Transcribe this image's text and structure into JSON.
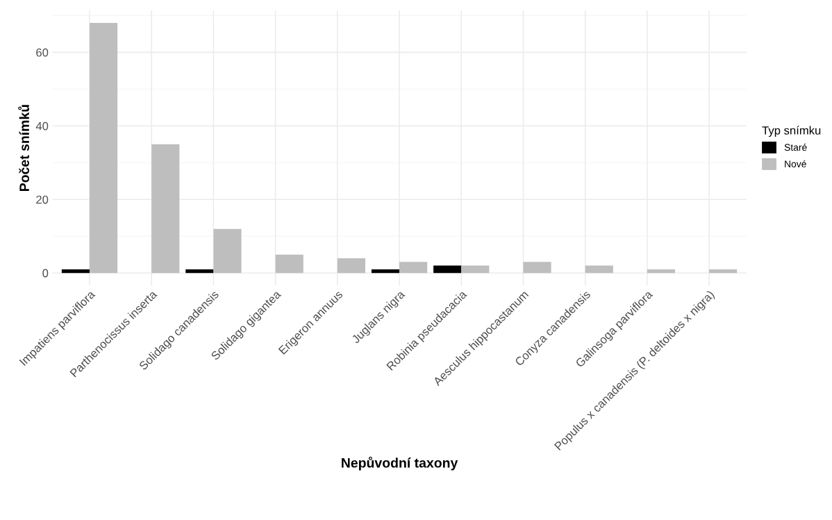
{
  "chart_data": {
    "type": "bar",
    "categories": [
      "Impatiens parviflora",
      "Parthenocissus inserta",
      "Solidago canadensis",
      "Solidago gigantea",
      "Erigeron annuus",
      "Juglans nigra",
      "Robinia pseudacacia",
      "Aesculus hippocastanum",
      "Conyza canadensis",
      "Galinsoga parviflora",
      "Populus x canadensis (P. deltoides x nigra)"
    ],
    "series": [
      {
        "name": "Staré",
        "color": "#000000",
        "values": [
          1,
          null,
          1,
          null,
          null,
          1,
          2,
          null,
          null,
          null,
          null
        ]
      },
      {
        "name": "Nové",
        "color": "#bebebe",
        "values": [
          68,
          35,
          12,
          5,
          4,
          3,
          2,
          3,
          2,
          1,
          1
        ]
      }
    ],
    "xlabel": "Nepůvodní taxony",
    "ylabel": "Počet snímků",
    "legend_title": "Typ snímku",
    "ylim": [
      -3.4,
      71.4
    ],
    "yticks": [
      0,
      20,
      40,
      60
    ],
    "grid": true,
    "legend": "right"
  }
}
